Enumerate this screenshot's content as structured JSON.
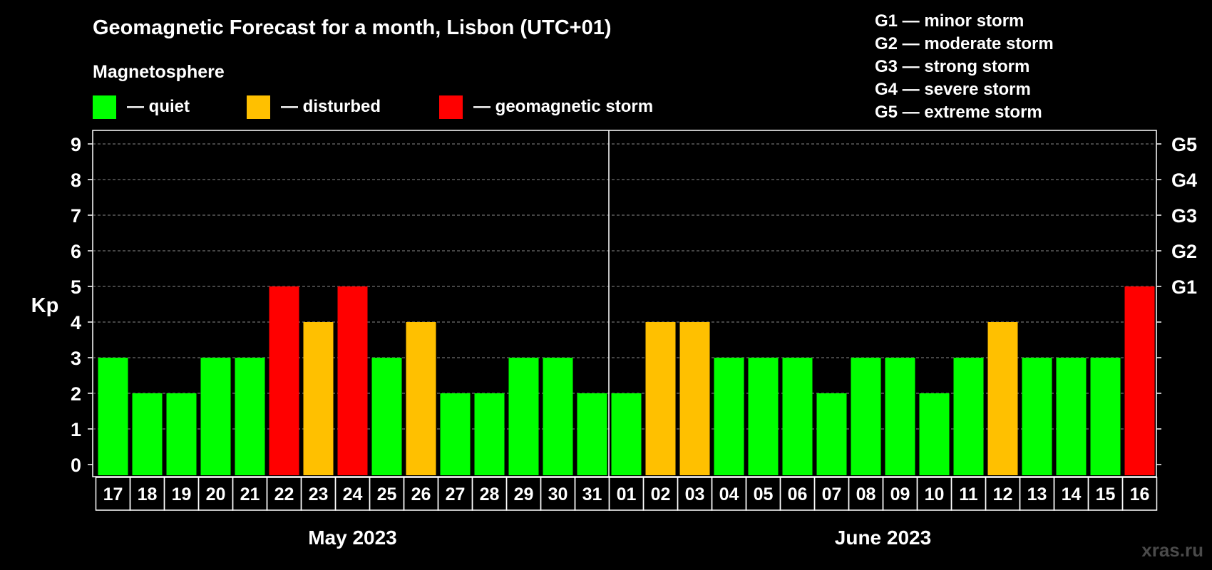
{
  "title": "Geomagnetic Forecast for a month, Lisbon (UTC+01)",
  "magnetosphere_label": "Magnetosphere",
  "legend": [
    {
      "label": "— quiet",
      "color": "#00ff00"
    },
    {
      "label": "— disturbed",
      "color": "#ffc000"
    },
    {
      "label": "— geomagnetic storm",
      "color": "#ff0000"
    }
  ],
  "g_scale": [
    "G1 — minor storm",
    "G2 — moderate storm",
    "G3 — strong storm",
    "G4 — severe storm",
    "G5 — extreme storm"
  ],
  "watermark": "xras.ru",
  "chart_data": {
    "type": "bar",
    "ylabel": "Kp",
    "ylim": [
      0,
      9
    ],
    "yticks": [
      "0",
      "1",
      "2",
      "3",
      "4",
      "5",
      "6",
      "7",
      "8",
      "9"
    ],
    "right_axis_labels": [
      {
        "value": 5,
        "label": "G1"
      },
      {
        "value": 6,
        "label": "G2"
      },
      {
        "value": 7,
        "label": "G3"
      },
      {
        "value": 8,
        "label": "G4"
      },
      {
        "value": 9,
        "label": "G5"
      }
    ],
    "grid": true,
    "categories": [
      "17",
      "18",
      "19",
      "20",
      "21",
      "22",
      "23",
      "24",
      "25",
      "26",
      "27",
      "28",
      "29",
      "30",
      "31",
      "01",
      "02",
      "03",
      "04",
      "05",
      "06",
      "07",
      "08",
      "09",
      "10",
      "11",
      "12",
      "13",
      "14",
      "15",
      "16"
    ],
    "values": [
      3,
      2,
      2,
      3,
      3,
      5,
      4,
      5,
      3,
      4,
      2,
      2,
      3,
      3,
      2,
      2,
      4,
      4,
      3,
      3,
      3,
      2,
      3,
      3,
      2,
      3,
      4,
      3,
      3,
      3,
      5
    ],
    "months": [
      {
        "label": "May 2023",
        "from_index": 0,
        "to_index": 14
      },
      {
        "label": "June 2023",
        "from_index": 15,
        "to_index": 30
      }
    ],
    "colors": {
      "quiet": "#00ff00",
      "disturbed": "#ffc000",
      "storm": "#ff0000"
    },
    "thresholds": {
      "disturbed": 4,
      "storm": 5
    }
  }
}
